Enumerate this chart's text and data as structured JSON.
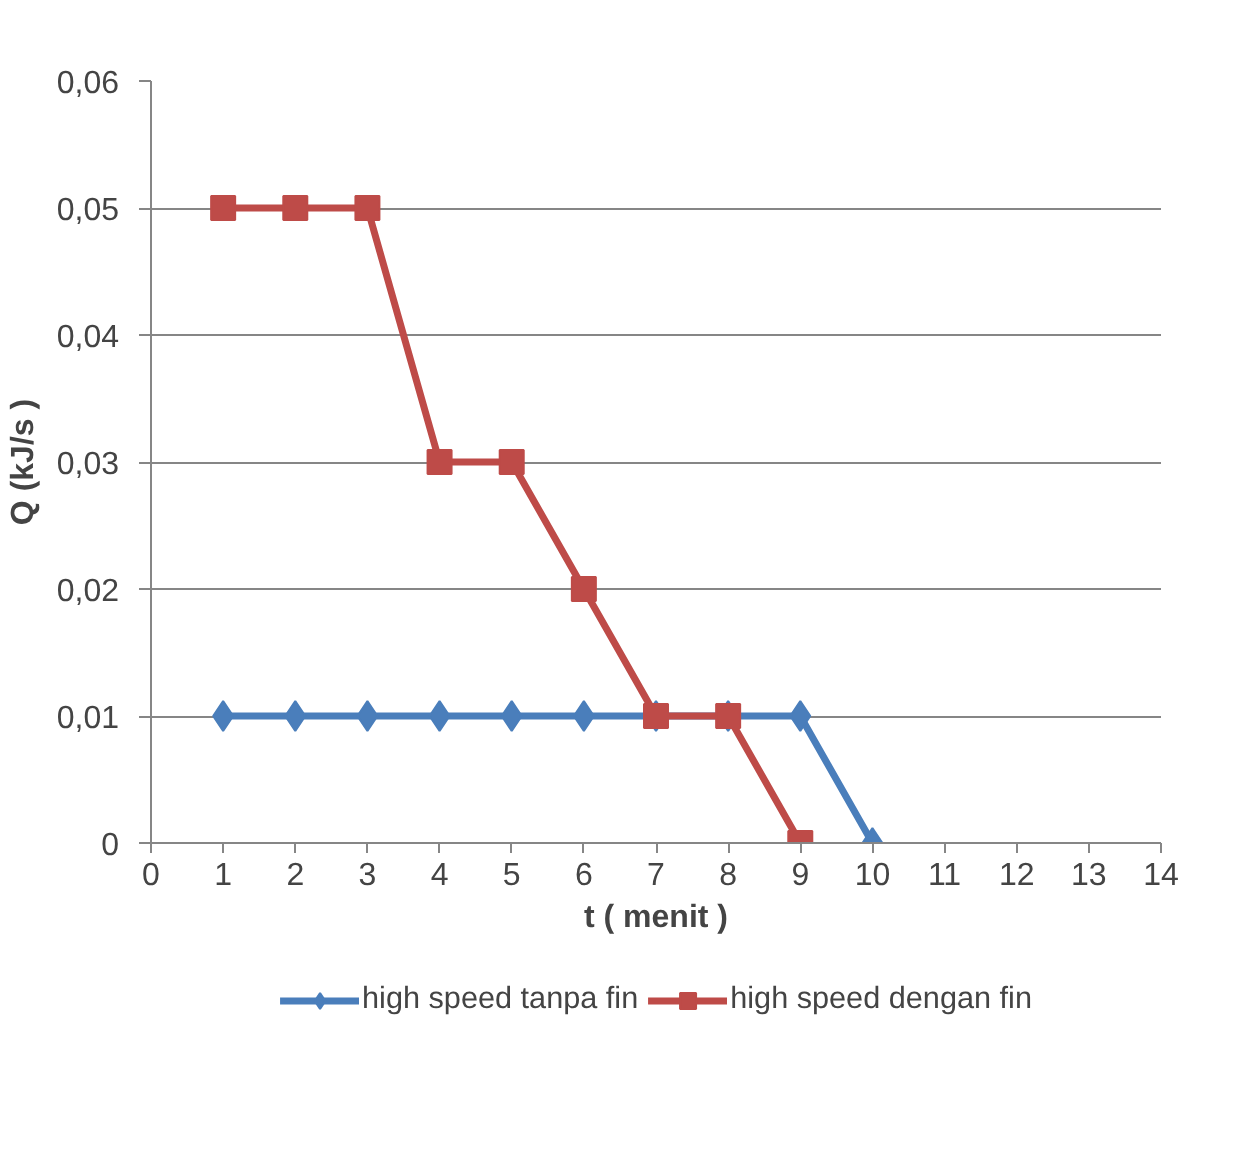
{
  "chart_data": {
    "type": "line",
    "xlabel": "t ( menit )",
    "ylabel": "Q (kJ/s )",
    "series": [
      {
        "name": "high speed tanpa fin",
        "color": "#4a7ebb",
        "marker": "diamond",
        "x": [
          1,
          2,
          3,
          4,
          5,
          6,
          7,
          8,
          9,
          10
        ],
        "values": [
          0.01,
          0.01,
          0.01,
          0.01,
          0.01,
          0.01,
          0.01,
          0.01,
          0.01,
          0
        ]
      },
      {
        "name": "high speed dengan fin",
        "color": "#be4b48",
        "marker": "square",
        "x": [
          1,
          2,
          3,
          4,
          5,
          6,
          7,
          8,
          9
        ],
        "values": [
          0.05,
          0.05,
          0.05,
          0.03,
          0.03,
          0.02,
          0.01,
          0.01,
          0
        ]
      }
    ],
    "xlim": [
      0,
      14
    ],
    "xticks": [
      0,
      1,
      2,
      3,
      4,
      5,
      6,
      7,
      8,
      9,
      10,
      11,
      12,
      13,
      14
    ],
    "ylim": [
      0,
      0.06
    ],
    "yticks": [
      0,
      {
        "value": 0.01,
        "label": "0,01"
      },
      {
        "value": 0.02,
        "label": "0,02"
      },
      {
        "value": 0.03,
        "label": "0,03"
      },
      {
        "value": 0.04,
        "label": "0,04"
      },
      {
        "value": 0.05,
        "label": "0,05"
      },
      {
        "value": 0.06,
        "label": "0,06"
      }
    ],
    "grid": "y",
    "legend": "bottom",
    "line_style": "solid"
  }
}
